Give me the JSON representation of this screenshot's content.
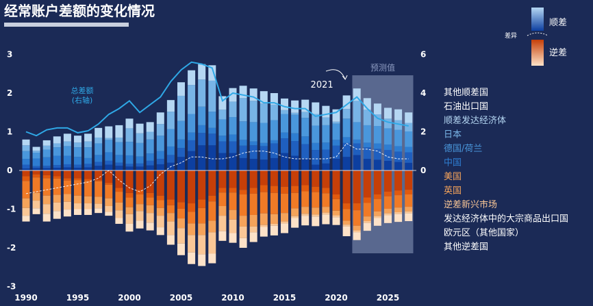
{
  "chart_data": {
    "type": "bar",
    "title": "经常账户差额的变化情况",
    "x": [
      1990,
      1991,
      1992,
      1993,
      1994,
      1995,
      1996,
      1997,
      1998,
      1999,
      2000,
      2001,
      2002,
      2003,
      2004,
      2005,
      2006,
      2007,
      2008,
      2009,
      2010,
      2011,
      2012,
      2013,
      2014,
      2015,
      2016,
      2017,
      2018,
      2019,
      2020,
      2021,
      2022,
      2023,
      2024,
      2025,
      2026,
      2027
    ],
    "x_ticks": [
      "1990",
      "1995",
      "2000",
      "2005",
      "2010",
      "2015",
      "2020",
      "2025"
    ],
    "y_left_ticks": [
      "3",
      "2",
      "1",
      "0",
      "-1",
      "-2",
      "-3"
    ],
    "y_right_ticks": [
      "6",
      "4",
      "2",
      "0"
    ],
    "ylim_left": [
      -3,
      3.2
    ],
    "ylim_right": [
      -6,
      6.4
    ],
    "positive_series": [
      {
        "name": "中国",
        "color": "#0d3fa0",
        "values": [
          0.05,
          0.06,
          0.06,
          0.07,
          0.08,
          0.07,
          0.08,
          0.12,
          0.15,
          0.12,
          0.1,
          0.1,
          0.13,
          0.16,
          0.2,
          0.35,
          0.5,
          0.65,
          0.65,
          0.45,
          0.45,
          0.32,
          0.3,
          0.28,
          0.32,
          0.45,
          0.38,
          0.3,
          0.15,
          0.18,
          0.3,
          0.35,
          0.4,
          0.3,
          0.28,
          0.25,
          0.22,
          0.2
        ]
      },
      {
        "name": "德国/荷兰",
        "color": "#1f5fbf",
        "values": [
          0.1,
          0.05,
          0.06,
          0.07,
          0.08,
          0.08,
          0.09,
          0.1,
          0.1,
          0.08,
          0.07,
          0.08,
          0.12,
          0.14,
          0.2,
          0.23,
          0.28,
          0.32,
          0.3,
          0.3,
          0.3,
          0.32,
          0.35,
          0.35,
          0.38,
          0.38,
          0.38,
          0.38,
          0.38,
          0.36,
          0.34,
          0.36,
          0.3,
          0.3,
          0.28,
          0.28,
          0.27,
          0.27
        ]
      },
      {
        "name": "日本",
        "color": "#2e7dd1",
        "values": [
          0.15,
          0.2,
          0.22,
          0.24,
          0.22,
          0.2,
          0.15,
          0.18,
          0.22,
          0.2,
          0.22,
          0.18,
          0.19,
          0.2,
          0.22,
          0.22,
          0.2,
          0.2,
          0.15,
          0.15,
          0.18,
          0.15,
          0.1,
          0.08,
          0.08,
          0.15,
          0.2,
          0.2,
          0.18,
          0.18,
          0.15,
          0.15,
          0.1,
          0.12,
          0.14,
          0.14,
          0.14,
          0.14
        ]
      },
      {
        "name": "顺差发达经济体",
        "color": "#4a97dc",
        "values": [
          0.2,
          0.15,
          0.2,
          0.22,
          0.25,
          0.25,
          0.28,
          0.3,
          0.32,
          0.33,
          0.35,
          0.35,
          0.36,
          0.4,
          0.45,
          0.48,
          0.48,
          0.48,
          0.42,
          0.42,
          0.45,
          0.48,
          0.5,
          0.52,
          0.52,
          0.48,
          0.48,
          0.48,
          0.45,
          0.45,
          0.42,
          0.48,
          0.45,
          0.45,
          0.45,
          0.42,
          0.42,
          0.4
        ]
      },
      {
        "name": "石油出口国",
        "color": "#78b4e6",
        "values": [
          0.15,
          0.05,
          0.1,
          0.1,
          0.12,
          0.12,
          0.15,
          0.15,
          0.05,
          0.12,
          0.35,
          0.25,
          0.2,
          0.3,
          0.45,
          0.65,
          0.75,
          0.7,
          0.8,
          0.25,
          0.4,
          0.6,
          0.55,
          0.5,
          0.4,
          0.1,
          0.05,
          0.15,
          0.3,
          0.2,
          0.05,
          0.25,
          0.55,
          0.4,
          0.3,
          0.25,
          0.25,
          0.22
        ]
      },
      {
        "name": "其他顺差国",
        "color": "#b5d7f3",
        "values": [
          0.15,
          0.1,
          0.14,
          0.18,
          0.2,
          0.18,
          0.2,
          0.25,
          0.3,
          0.32,
          0.25,
          0.25,
          0.25,
          0.3,
          0.3,
          0.35,
          0.38,
          0.4,
          0.4,
          0.35,
          0.35,
          0.32,
          0.32,
          0.32,
          0.3,
          0.3,
          0.32,
          0.32,
          0.3,
          0.3,
          0.32,
          0.35,
          0.32,
          0.3,
          0.28,
          0.28,
          0.28,
          0.27
        ]
      }
    ],
    "negative_series": [
      {
        "name": "美国",
        "color": "#c63f08",
        "values": [
          0.15,
          0.1,
          0.12,
          0.15,
          0.2,
          0.2,
          0.22,
          0.25,
          0.32,
          0.45,
          0.58,
          0.5,
          0.58,
          0.65,
          0.75,
          0.82,
          0.85,
          0.75,
          0.65,
          0.45,
          0.45,
          0.5,
          0.45,
          0.38,
          0.4,
          0.42,
          0.4,
          0.38,
          0.42,
          0.45,
          0.62,
          0.85,
          0.85,
          0.7,
          0.62,
          0.55,
          0.52,
          0.5
        ]
      },
      {
        "name": "英国",
        "color": "#e15a0e",
        "values": [
          0.12,
          0.08,
          0.08,
          0.06,
          0.06,
          0.05,
          0.05,
          0.03,
          0.05,
          0.1,
          0.12,
          0.12,
          0.12,
          0.12,
          0.15,
          0.17,
          0.22,
          0.22,
          0.15,
          0.12,
          0.12,
          0.12,
          0.15,
          0.18,
          0.18,
          0.18,
          0.18,
          0.16,
          0.14,
          0.14,
          0.12,
          0.15,
          0.18,
          0.14,
          0.12,
          0.12,
          0.12,
          0.12
        ]
      },
      {
        "name": "逆差新兴市场",
        "color": "#f07a26",
        "values": [
          0.45,
          0.4,
          0.45,
          0.42,
          0.35,
          0.4,
          0.4,
          0.4,
          0.35,
          0.28,
          0.25,
          0.25,
          0.2,
          0.2,
          0.2,
          0.25,
          0.3,
          0.4,
          0.5,
          0.35,
          0.45,
          0.55,
          0.55,
          0.55,
          0.55,
          0.5,
          0.4,
          0.4,
          0.4,
          0.35,
          0.3,
          0.3,
          0.4,
          0.35,
          0.32,
          0.32,
          0.32,
          0.32
        ]
      },
      {
        "name": "发达经济体中的大宗商品出口国",
        "color": "#f5a35a",
        "values": [
          0.25,
          0.2,
          0.22,
          0.2,
          0.2,
          0.2,
          0.18,
          0.18,
          0.2,
          0.2,
          0.18,
          0.18,
          0.2,
          0.2,
          0.22,
          0.25,
          0.3,
          0.3,
          0.3,
          0.25,
          0.25,
          0.28,
          0.3,
          0.3,
          0.25,
          0.22,
          0.2,
          0.18,
          0.18,
          0.15,
          0.12,
          0.1,
          0.12,
          0.12,
          0.12,
          0.12,
          0.12,
          0.12
        ]
      },
      {
        "name": "欧元区（其他国家）",
        "color": "#fac796",
        "values": [
          0.2,
          0.2,
          0.25,
          0.22,
          0.2,
          0.15,
          0.15,
          0.12,
          0.15,
          0.2,
          0.25,
          0.25,
          0.25,
          0.3,
          0.35,
          0.4,
          0.45,
          0.5,
          0.55,
          0.4,
          0.35,
          0.3,
          0.15,
          0.05,
          0.05,
          0.05,
          0.05,
          0.05,
          0.05,
          0.05,
          0.05,
          0.05,
          0.05,
          0.05,
          0.05,
          0.05,
          0.05,
          0.05
        ]
      },
      {
        "name": "其他逆差国",
        "color": "#fde2c8",
        "values": [
          0.15,
          0.15,
          0.2,
          0.2,
          0.18,
          0.15,
          0.15,
          0.12,
          0.1,
          0.15,
          0.2,
          0.2,
          0.2,
          0.2,
          0.25,
          0.3,
          0.3,
          0.3,
          0.25,
          0.25,
          0.25,
          0.25,
          0.25,
          0.25,
          0.25,
          0.25,
          0.25,
          0.25,
          0.25,
          0.25,
          0.2,
          0.25,
          0.2,
          0.2,
          0.2,
          0.2,
          0.2,
          0.2
        ]
      }
    ],
    "total_line": {
      "axis": "right",
      "label": "总差额\n(右轴)",
      "color": "#2fa8e6",
      "values": [
        2.0,
        1.8,
        2.1,
        2.2,
        2.2,
        1.95,
        2.05,
        2.4,
        2.9,
        3.2,
        3.6,
        3.0,
        3.4,
        3.8,
        4.6,
        5.2,
        5.6,
        5.5,
        5.3,
        3.6,
        4.0,
        3.9,
        3.8,
        3.5,
        3.5,
        3.3,
        3.2,
        3.2,
        2.8,
        2.9,
        3.0,
        3.4,
        3.8,
        3.2,
        2.7,
        2.5,
        2.4,
        2.3
      ]
    },
    "net_line": {
      "axis": "left",
      "style": "dashed",
      "color": "#ffffff",
      "values": [
        -0.6,
        -0.55,
        -0.5,
        -0.45,
        -0.4,
        -0.35,
        -0.3,
        -0.2,
        0.0,
        -0.25,
        -0.45,
        -0.55,
        -0.4,
        -0.1,
        0.1,
        0.2,
        0.35,
        0.35,
        0.3,
        0.3,
        0.35,
        0.45,
        0.5,
        0.5,
        0.45,
        0.35,
        0.3,
        0.3,
        0.3,
        0.3,
        0.35,
        0.7,
        0.55,
        0.55,
        0.5,
        0.35,
        0.3,
        0.3
      ]
    },
    "forecast": {
      "label": "预测值",
      "start": 2022,
      "end": 2027,
      "color": "#8c9ac0"
    },
    "annotation": {
      "label": "2021",
      "year": 2021
    },
    "legend": {
      "surplus_label": "顺差",
      "deficit_label": "逆差",
      "diff_label": "差异",
      "items": [
        {
          "label": "其他顺差国",
          "color": "#ffffff"
        },
        {
          "label": "石油出口国",
          "color": "#ffffff"
        },
        {
          "label": "顺差发达经济体",
          "color": "#b5d7f3"
        },
        {
          "label": "日本",
          "color": "#78b4e6"
        },
        {
          "label": "德国/荷兰",
          "color": "#4a97dc"
        },
        {
          "label": "中国",
          "color": "#2e7dd1"
        },
        {
          "label": "美国",
          "color": "#f5a35a"
        },
        {
          "label": "英国",
          "color": "#f5a35a"
        },
        {
          "label": "逆差新兴市场",
          "color": "#fac796"
        },
        {
          "label": "发达经济体中的大宗商品出口国",
          "color": "#ffffff"
        },
        {
          "label": "欧元区（其他国家）",
          "color": "#ffffff"
        },
        {
          "label": "其他逆差国",
          "color": "#ffffff"
        }
      ]
    }
  }
}
